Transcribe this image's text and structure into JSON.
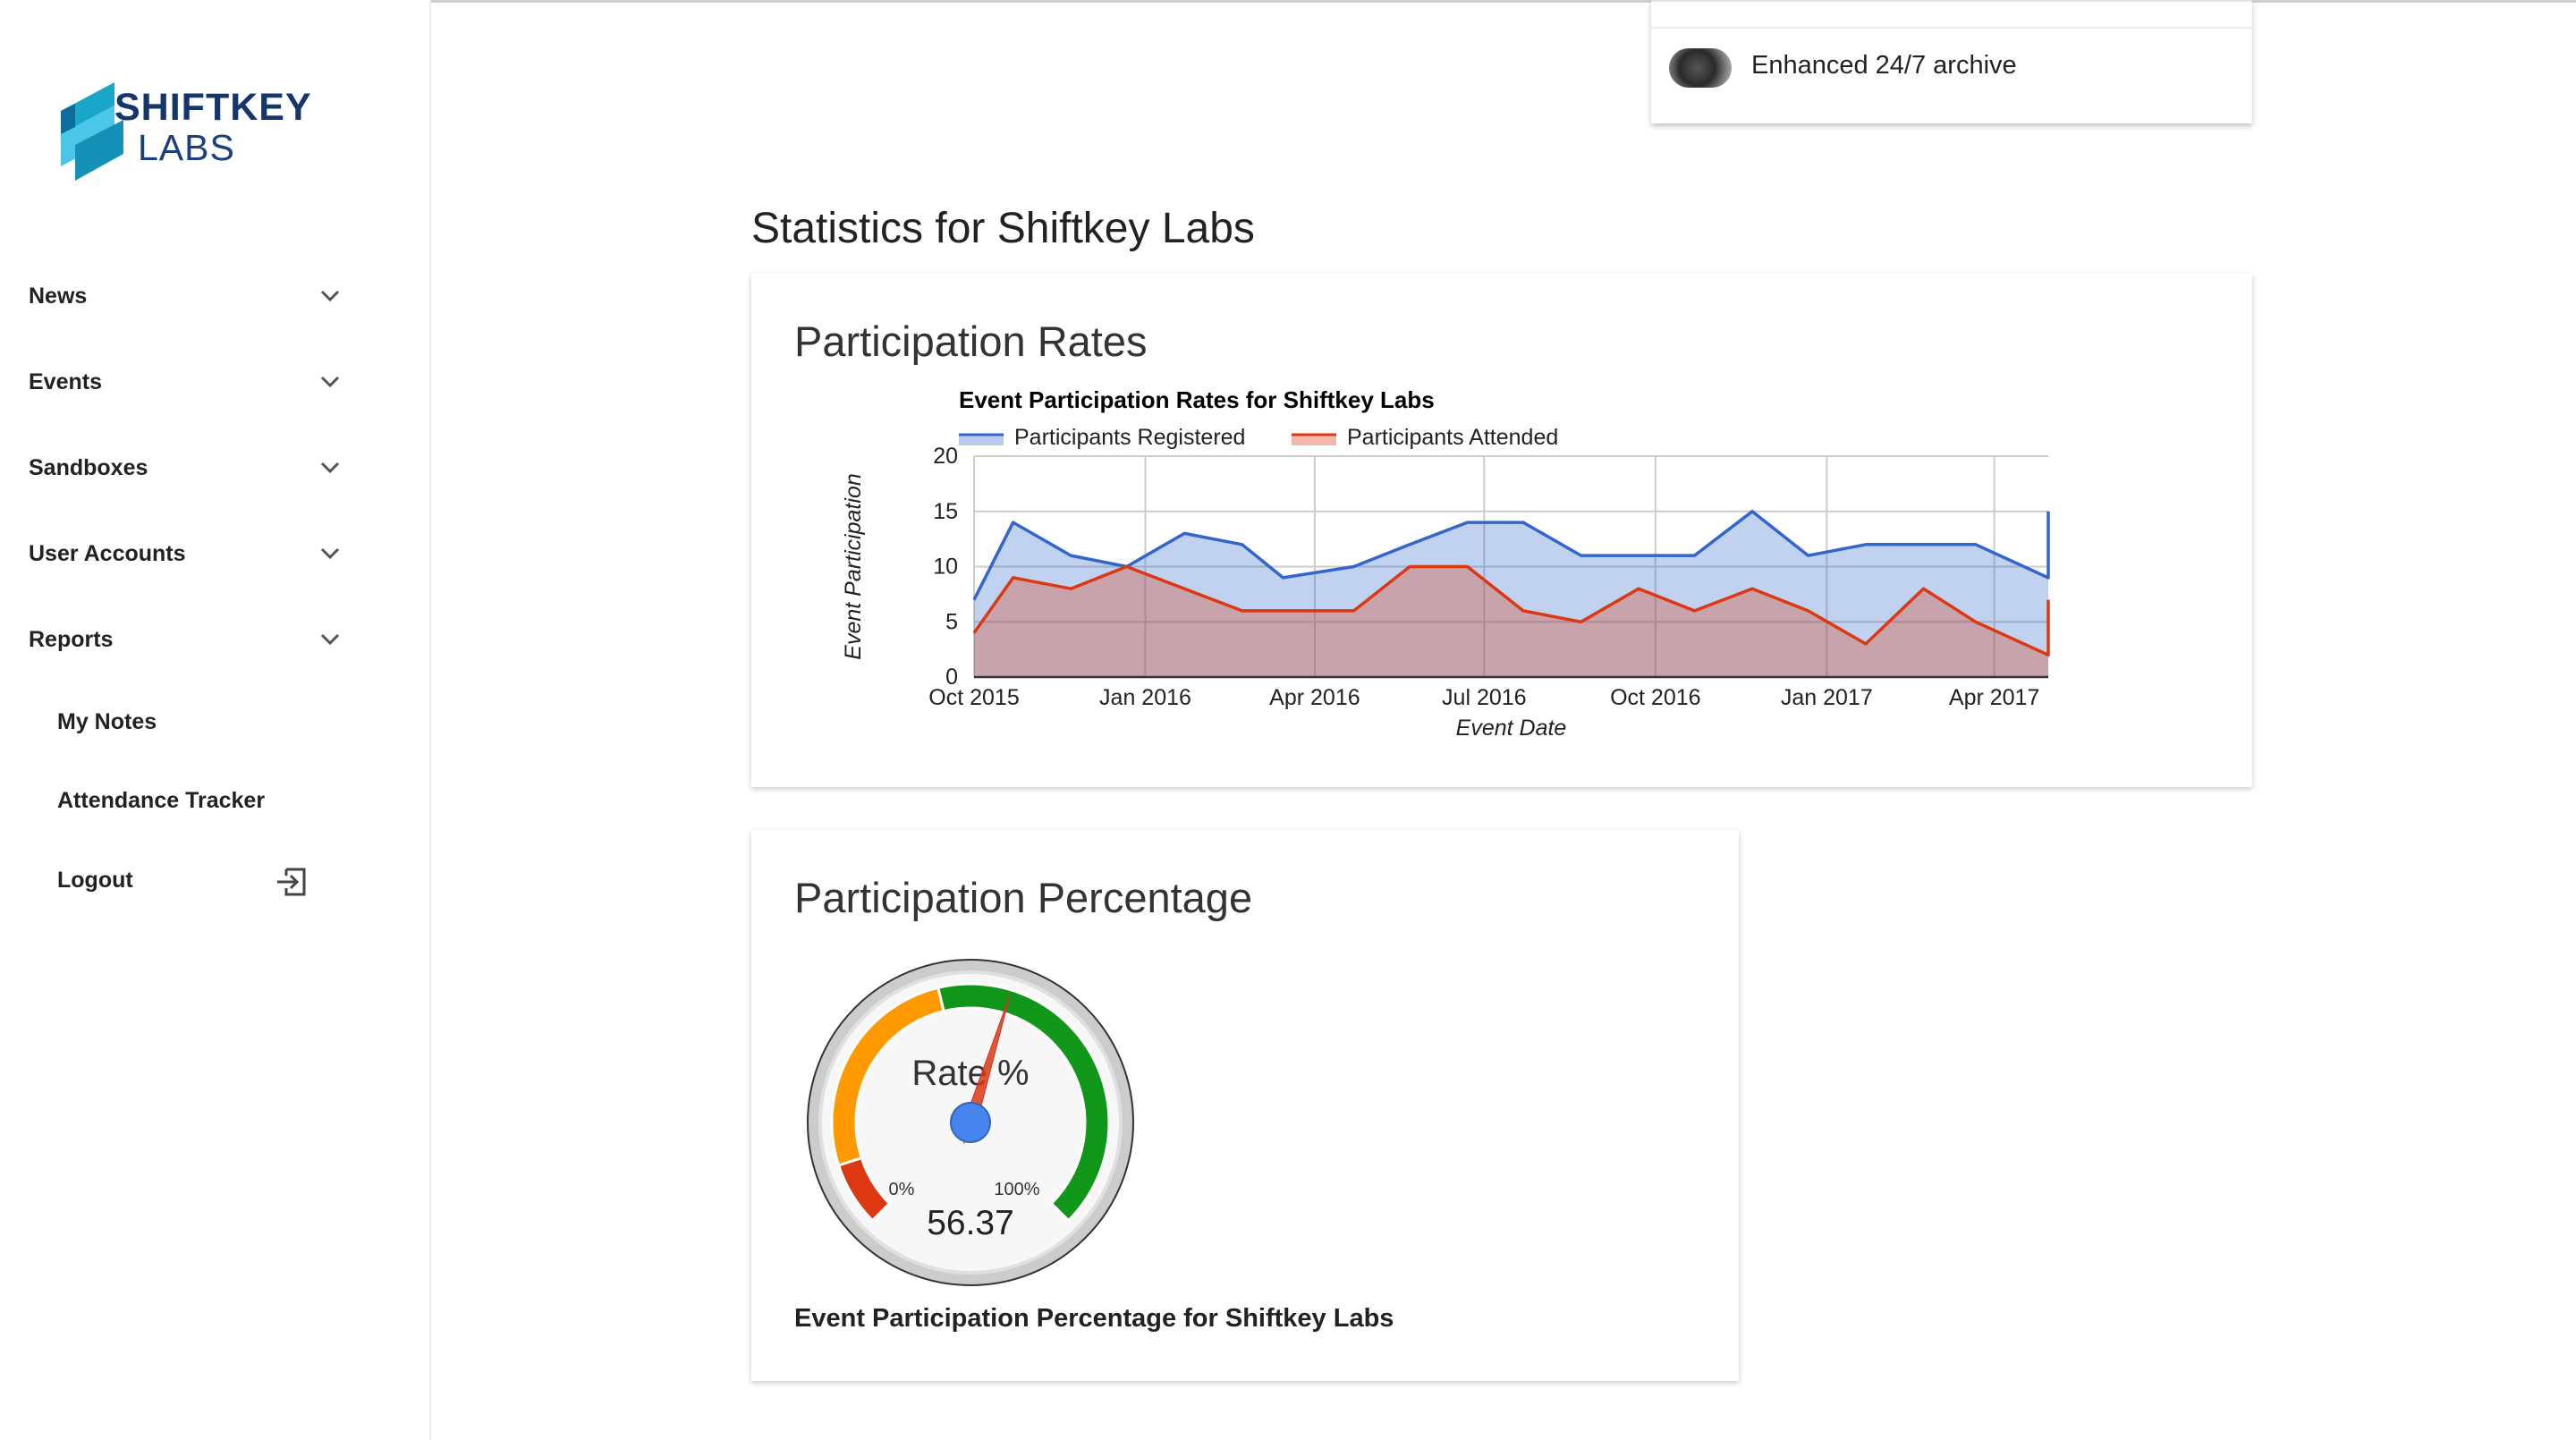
{
  "brand": {
    "line1": "SHIFTKEY",
    "line2": "LABS",
    "colors": {
      "dark": "#15366b",
      "teal": "#1aa6c8",
      "cyan": "#4cc6e8"
    }
  },
  "sidebar": {
    "items": [
      {
        "label": "News",
        "icon": "chevron-down-icon"
      },
      {
        "label": "Events",
        "icon": "chevron-down-icon"
      },
      {
        "label": "Sandboxes",
        "icon": "chevron-down-icon"
      },
      {
        "label": "User Accounts",
        "icon": "chevron-down-icon"
      },
      {
        "label": "Reports",
        "icon": "chevron-down-icon"
      }
    ],
    "sub_items": [
      {
        "label": "My Notes"
      },
      {
        "label": "Attendance Tracker"
      },
      {
        "label": "Logout",
        "icon": "logout-icon"
      }
    ]
  },
  "notification": {
    "text": "Enhanced 24/7 archive"
  },
  "page": {
    "title": "Statistics for Shiftkey Labs"
  },
  "cards": {
    "rates": {
      "title": "Participation Rates"
    },
    "percentage": {
      "title": "Participation Percentage",
      "caption": "Event Participation Percentage for Shiftkey Labs"
    }
  },
  "chart_data": [
    {
      "type": "area",
      "title": "Event Participation Rates for Shiftkey Labs",
      "xlabel": "Event Date",
      "ylabel": "Event Participation",
      "ylim": [
        0,
        20
      ],
      "y_ticks": [
        0,
        5,
        10,
        15,
        20
      ],
      "x_tick_labels": [
        "Oct 2015",
        "Jan 2016",
        "Apr 2016",
        "Jul 2016",
        "Oct 2016",
        "Jan 2017",
        "Apr 2017"
      ],
      "x_range": [
        "2015-10-01",
        "2017-04-30"
      ],
      "grid": true,
      "legend": "top",
      "x": [
        "2015-10-01",
        "2015-10-22",
        "2015-11-22",
        "2015-12-22",
        "2016-01-22",
        "2016-02-22",
        "2016-03-15",
        "2016-04-22",
        "2016-05-22",
        "2016-06-22",
        "2016-07-22",
        "2016-08-22",
        "2016-09-22",
        "2016-10-22",
        "2016-11-22",
        "2016-12-22",
        "2017-01-22",
        "2017-02-22",
        "2017-03-22",
        "2017-04-30",
        "2017-04-30"
      ],
      "series": [
        {
          "name": "Participants Registered",
          "color": "#3366cc",
          "values": [
            7,
            14,
            11,
            10,
            13,
            12,
            9,
            10,
            12,
            14,
            14,
            11,
            11,
            11,
            15,
            11,
            12,
            12,
            12,
            9,
            15
          ]
        },
        {
          "name": "Participants Attended",
          "color": "#dc3912",
          "values": [
            4,
            9,
            8,
            10,
            8,
            6,
            6,
            6,
            10,
            10,
            6,
            5,
            8,
            6,
            8,
            6,
            3,
            8,
            5,
            2,
            7
          ]
        }
      ]
    },
    {
      "type": "gauge",
      "label": "Rate %",
      "value": 56.37,
      "value_label": "56.37",
      "min_label": "0%",
      "max_label": "100%",
      "bands": [
        {
          "from": 0,
          "to": 10,
          "color": "#dc3912"
        },
        {
          "from": 10,
          "to": 45,
          "color": "#ff9900"
        },
        {
          "from": 45,
          "to": 100,
          "color": "#109618"
        }
      ]
    }
  ]
}
